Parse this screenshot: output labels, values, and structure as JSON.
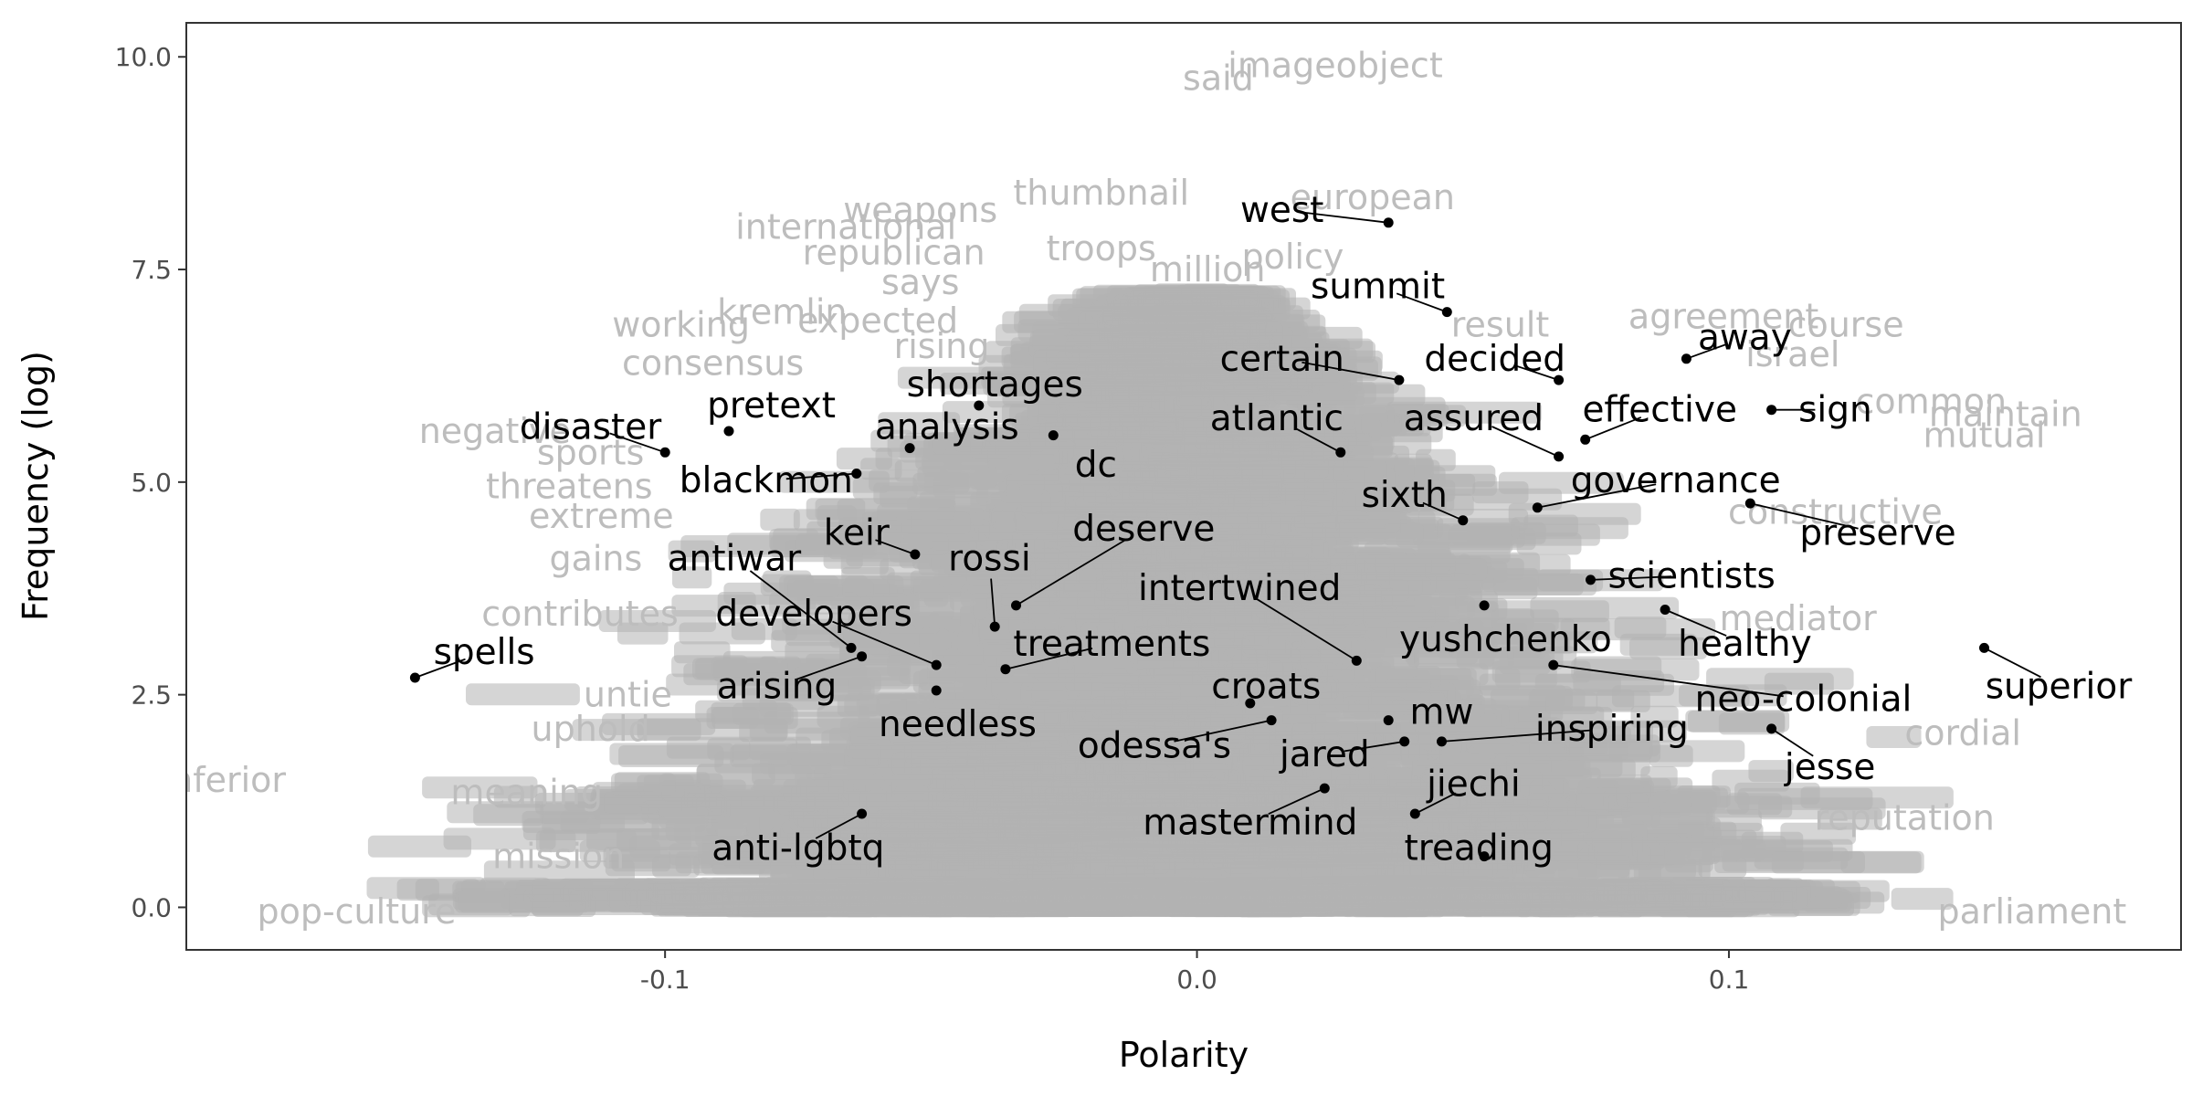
{
  "colors": {
    "panel_border": "#333333",
    "background_text": "#bdbdbd",
    "mass": "#b3b3b3",
    "highlight_text": "#000000",
    "point": "#000000"
  },
  "chart_data": {
    "type": "scatter",
    "xlabel": "Polarity",
    "ylabel": "Frequency (log)",
    "xlim": [
      -0.19,
      0.185
    ],
    "ylim": [
      -0.5,
      10.4
    ],
    "x_ticks": [
      {
        "value": -0.1,
        "label": "-0.1"
      },
      {
        "value": 0.0,
        "label": "0.0"
      },
      {
        "value": 0.1,
        "label": "0.1"
      }
    ],
    "y_ticks": [
      {
        "value": 0.0,
        "label": "0.0"
      },
      {
        "value": 2.5,
        "label": "2.5"
      },
      {
        "value": 5.0,
        "label": "5.0"
      },
      {
        "value": 7.5,
        "label": "7.5"
      },
      {
        "value": 10.0,
        "label": "10.0"
      }
    ],
    "grid": false,
    "highlighted_words": [
      {
        "word": "west",
        "x": 0.036,
        "y": 8.05,
        "label_x": 0.016,
        "label_y": 8.2
      },
      {
        "word": "summit",
        "x": 0.047,
        "y": 7.0,
        "label_x": 0.034,
        "label_y": 7.3
      },
      {
        "word": "away",
        "x": 0.092,
        "y": 6.45,
        "label_x": 0.103,
        "label_y": 6.7
      },
      {
        "word": "certain",
        "x": 0.038,
        "y": 6.2,
        "label_x": 0.016,
        "label_y": 6.45
      },
      {
        "word": "decided",
        "x": 0.068,
        "y": 6.2,
        "label_x": 0.056,
        "label_y": 6.45
      },
      {
        "word": "sign",
        "x": 0.108,
        "y": 5.85,
        "label_x": 0.12,
        "label_y": 5.85
      },
      {
        "word": "shortages",
        "x": -0.041,
        "y": 5.9,
        "label_x": -0.038,
        "label_y": 6.15
      },
      {
        "word": "pretext",
        "x": -0.088,
        "y": 5.6,
        "label_x": -0.08,
        "label_y": 5.9
      },
      {
        "word": "disaster",
        "x": -0.1,
        "y": 5.35,
        "label_x": -0.114,
        "label_y": 5.65
      },
      {
        "word": "analysis",
        "x": -0.054,
        "y": 5.4,
        "label_x": -0.047,
        "label_y": 5.65
      },
      {
        "word": "dc",
        "x": -0.027,
        "y": 5.55,
        "label_x": -0.019,
        "label_y": 5.2
      },
      {
        "word": "atlantic",
        "x": 0.027,
        "y": 5.35,
        "label_x": 0.015,
        "label_y": 5.75
      },
      {
        "word": "assured",
        "x": 0.068,
        "y": 5.3,
        "label_x": 0.052,
        "label_y": 5.75
      },
      {
        "word": "effective",
        "x": 0.073,
        "y": 5.5,
        "label_x": 0.087,
        "label_y": 5.85
      },
      {
        "word": "blackmon",
        "x": -0.064,
        "y": 5.1,
        "label_x": -0.081,
        "label_y": 5.02
      },
      {
        "word": "governance",
        "x": 0.064,
        "y": 4.7,
        "label_x": 0.09,
        "label_y": 5.02
      },
      {
        "word": "sixth",
        "x": 0.05,
        "y": 4.55,
        "label_x": 0.039,
        "label_y": 4.85
      },
      {
        "word": "preserve",
        "x": 0.104,
        "y": 4.75,
        "label_x": 0.128,
        "label_y": 4.4
      },
      {
        "word": "keir",
        "x": -0.053,
        "y": 4.15,
        "label_x": -0.064,
        "label_y": 4.4
      },
      {
        "word": "deserve",
        "x": -0.034,
        "y": 3.55,
        "label_x": -0.01,
        "label_y": 4.45
      },
      {
        "word": "rossi",
        "x": -0.038,
        "y": 3.3,
        "label_x": -0.039,
        "label_y": 4.1
      },
      {
        "word": "antiwar",
        "x": -0.065,
        "y": 3.05,
        "label_x": -0.087,
        "label_y": 4.1
      },
      {
        "word": "intertwined",
        "x": 0.03,
        "y": 2.9,
        "label_x": 0.008,
        "label_y": 3.75
      },
      {
        "word": "scientists",
        "x": 0.074,
        "y": 3.85,
        "label_x": 0.093,
        "label_y": 3.9
      },
      {
        "word": "developers",
        "x": -0.049,
        "y": 2.85,
        "label_x": -0.072,
        "label_y": 3.45
      },
      {
        "word": "treatments",
        "x": -0.036,
        "y": 2.8,
        "label_x": -0.016,
        "label_y": 3.1
      },
      {
        "word": "yushchenko",
        "x": 0.054,
        "y": 3.55,
        "label_x": 0.058,
        "label_y": 3.15
      },
      {
        "word": "healthy",
        "x": 0.088,
        "y": 3.5,
        "label_x": 0.103,
        "label_y": 3.1
      },
      {
        "word": "superior",
        "x": 0.148,
        "y": 3.05,
        "label_x": 0.162,
        "label_y": 2.6
      },
      {
        "word": "spells",
        "x": -0.147,
        "y": 2.7,
        "label_x": -0.134,
        "label_y": 3.0
      },
      {
        "word": "arising",
        "x": -0.063,
        "y": 2.95,
        "label_x": -0.079,
        "label_y": 2.6
      },
      {
        "word": "croats",
        "x": 0.01,
        "y": 2.4,
        "label_x": 0.013,
        "label_y": 2.6
      },
      {
        "word": "neo-colonial",
        "x": 0.067,
        "y": 2.85,
        "label_x": 0.114,
        "label_y": 2.45
      },
      {
        "word": "needless",
        "x": -0.049,
        "y": 2.55,
        "label_x": -0.045,
        "label_y": 2.15
      },
      {
        "word": "mw",
        "x": 0.036,
        "y": 2.2,
        "label_x": 0.046,
        "label_y": 2.3
      },
      {
        "word": "inspiring",
        "x": 0.046,
        "y": 1.95,
        "label_x": 0.078,
        "label_y": 2.1
      },
      {
        "word": "odessa's",
        "x": 0.014,
        "y": 2.2,
        "label_x": -0.008,
        "label_y": 1.9
      },
      {
        "word": "jared",
        "x": 0.039,
        "y": 1.95,
        "label_x": 0.024,
        "label_y": 1.8
      },
      {
        "word": "jesse",
        "x": 0.108,
        "y": 2.1,
        "label_x": 0.119,
        "label_y": 1.65
      },
      {
        "word": "jiechi",
        "x": 0.041,
        "y": 1.1,
        "label_x": 0.052,
        "label_y": 1.45
      },
      {
        "word": "mastermind",
        "x": 0.024,
        "y": 1.4,
        "label_x": 0.01,
        "label_y": 1.0
      },
      {
        "word": "anti-lgbtq",
        "x": -0.063,
        "y": 1.1,
        "label_x": -0.075,
        "label_y": 0.7
      },
      {
        "word": "treading",
        "x": 0.054,
        "y": 0.6,
        "label_x": 0.053,
        "label_y": 0.7
      }
    ],
    "background_words": [
      {
        "word": "imageobject",
        "x": 0.026,
        "y": 9.9
      },
      {
        "word": "said",
        "x": 0.004,
        "y": 9.75
      },
      {
        "word": "thumbnail",
        "x": -0.018,
        "y": 8.4
      },
      {
        "word": "weapons",
        "x": -0.052,
        "y": 8.2
      },
      {
        "word": "european",
        "x": 0.033,
        "y": 8.35
      },
      {
        "word": "international",
        "x": -0.066,
        "y": 8.0
      },
      {
        "word": "republican",
        "x": -0.057,
        "y": 7.7
      },
      {
        "word": "troops",
        "x": -0.018,
        "y": 7.75
      },
      {
        "word": "million",
        "x": 0.002,
        "y": 7.5
      },
      {
        "word": "policy",
        "x": 0.018,
        "y": 7.65
      },
      {
        "word": "says",
        "x": -0.052,
        "y": 7.35
      },
      {
        "word": "working",
        "x": -0.097,
        "y": 6.85
      },
      {
        "word": "kremlin",
        "x": -0.078,
        "y": 7.0
      },
      {
        "word": "expected",
        "x": -0.06,
        "y": 6.9
      },
      {
        "word": "agreement",
        "x": 0.099,
        "y": 6.95
      },
      {
        "word": "course",
        "x": 0.122,
        "y": 6.85
      },
      {
        "word": "result",
        "x": 0.057,
        "y": 6.85
      },
      {
        "word": "rising",
        "x": -0.048,
        "y": 6.6
      },
      {
        "word": "israel",
        "x": 0.112,
        "y": 6.5
      },
      {
        "word": "consensus",
        "x": -0.091,
        "y": 6.4
      },
      {
        "word": "negative",
        "x": -0.132,
        "y": 5.6
      },
      {
        "word": "common",
        "x": 0.138,
        "y": 5.95
      },
      {
        "word": "maintain",
        "x": 0.152,
        "y": 5.8
      },
      {
        "word": "mutual",
        "x": 0.148,
        "y": 5.55
      },
      {
        "word": "sports",
        "x": -0.114,
        "y": 5.35
      },
      {
        "word": "threatens",
        "x": -0.118,
        "y": 4.95
      },
      {
        "word": "extreme",
        "x": -0.112,
        "y": 4.6
      },
      {
        "word": "constructive",
        "x": 0.12,
        "y": 4.65
      },
      {
        "word": "gains",
        "x": -0.113,
        "y": 4.1
      },
      {
        "word": "contributes",
        "x": -0.116,
        "y": 3.45
      },
      {
        "word": "mediator",
        "x": 0.113,
        "y": 3.4
      },
      {
        "word": "untie",
        "x": -0.107,
        "y": 2.5
      },
      {
        "word": "uphold",
        "x": -0.114,
        "y": 2.1
      },
      {
        "word": "cordial",
        "x": 0.144,
        "y": 2.05
      },
      {
        "word": "inferior",
        "x": -0.183,
        "y": 1.5
      },
      {
        "word": "meaning",
        "x": -0.126,
        "y": 1.35
      },
      {
        "word": "reputation",
        "x": 0.133,
        "y": 1.05
      },
      {
        "word": "mission",
        "x": -0.12,
        "y": 0.6
      },
      {
        "word": "pop-culture",
        "x": -0.158,
        "y": -0.05
      },
      {
        "word": "parliament",
        "x": 0.157,
        "y": -0.05
      }
    ]
  }
}
